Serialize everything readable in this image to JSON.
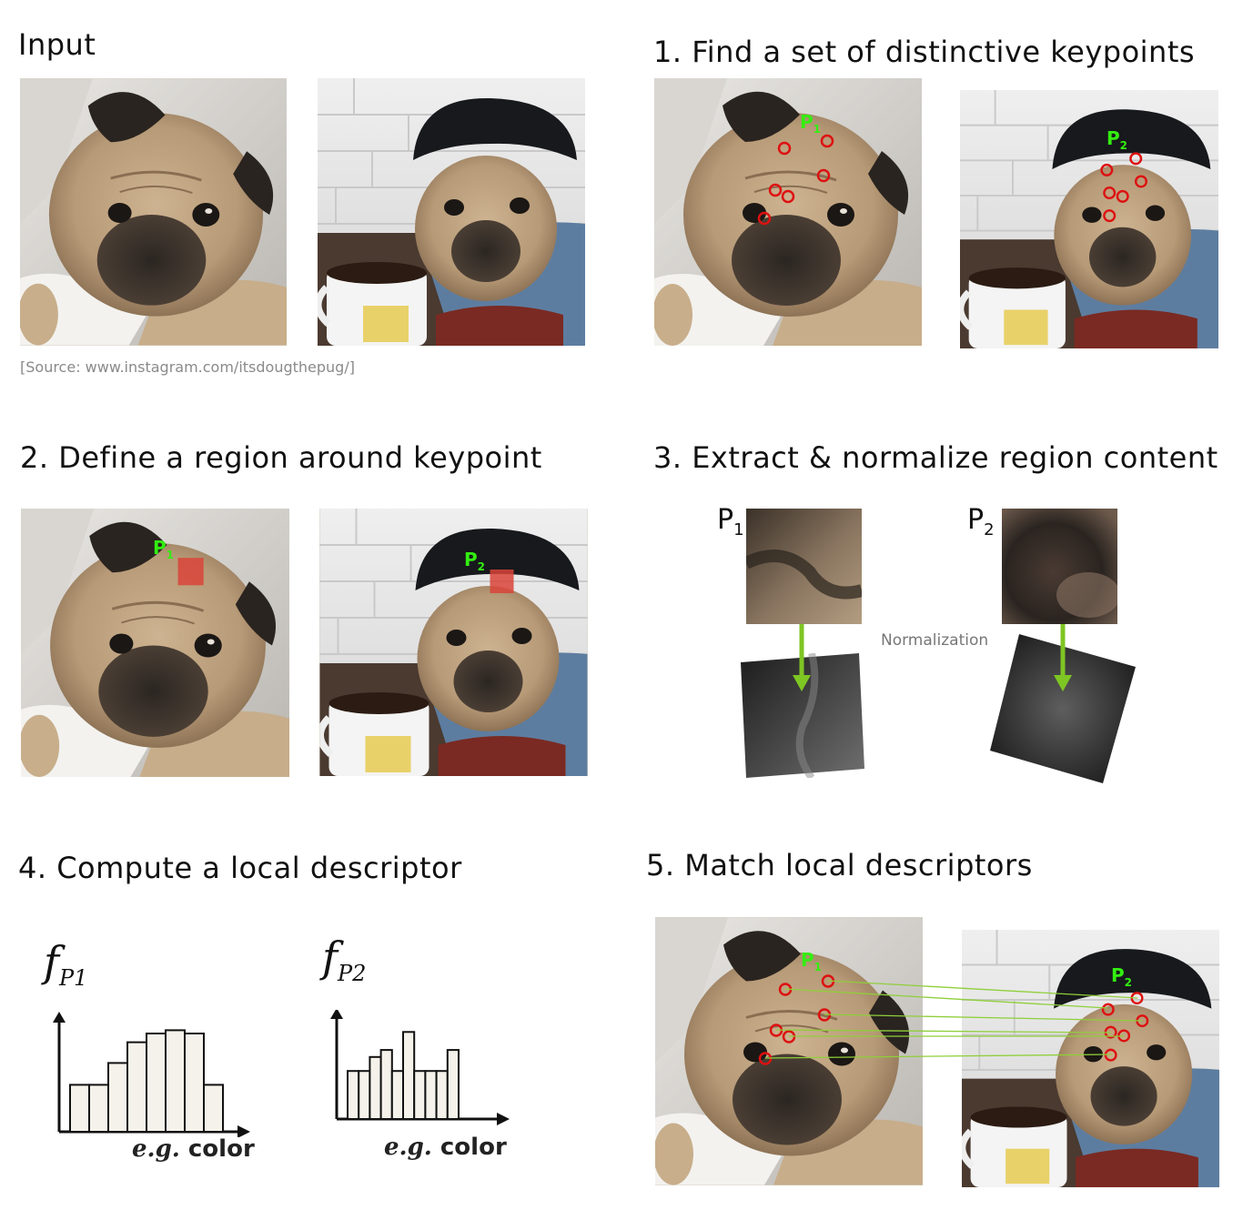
{
  "sections": {
    "input": {
      "title": "Input",
      "source": "[Source: www.instagram.com/itsdougthepug/]"
    },
    "step1": {
      "title": "1. Find a set of distinctive keypoints"
    },
    "step2": {
      "title": "2. Define a region around keypoint"
    },
    "step3": {
      "title": "3. Extract & normalize region content",
      "normalization_label": "Normalization"
    },
    "step4": {
      "title": "4. Compute a local descriptor",
      "xaxis_label_italic": "e.g.",
      "xaxis_label_rest": "color"
    },
    "step5": {
      "title": "5. Match local descriptors"
    }
  },
  "keypoints": {
    "p": "P",
    "sub1": "1",
    "sub2": "2"
  },
  "descriptor": {
    "f": "f",
    "sub1": "P1",
    "sub2": "P2"
  },
  "colors": {
    "keypoint_label": "#33ee11",
    "keypoint_marker": "#dd1111",
    "arrow": "#7ec623",
    "region": "#d9443a"
  },
  "chart_data": [
    {
      "type": "bar",
      "series": [
        {
          "name": "f_P1",
          "values": [
            0.43,
            0.43,
            0.63,
            0.82,
            0.9,
            0.93,
            0.9,
            0.43
          ]
        }
      ]
    },
    {
      "type": "bar",
      "series": [
        {
          "name": "f_P2",
          "values": [
            0.48,
            0.48,
            0.62,
            0.69,
            0.48,
            0.87,
            0.48,
            0.48,
            0.48,
            0.69
          ]
        }
      ]
    }
  ]
}
